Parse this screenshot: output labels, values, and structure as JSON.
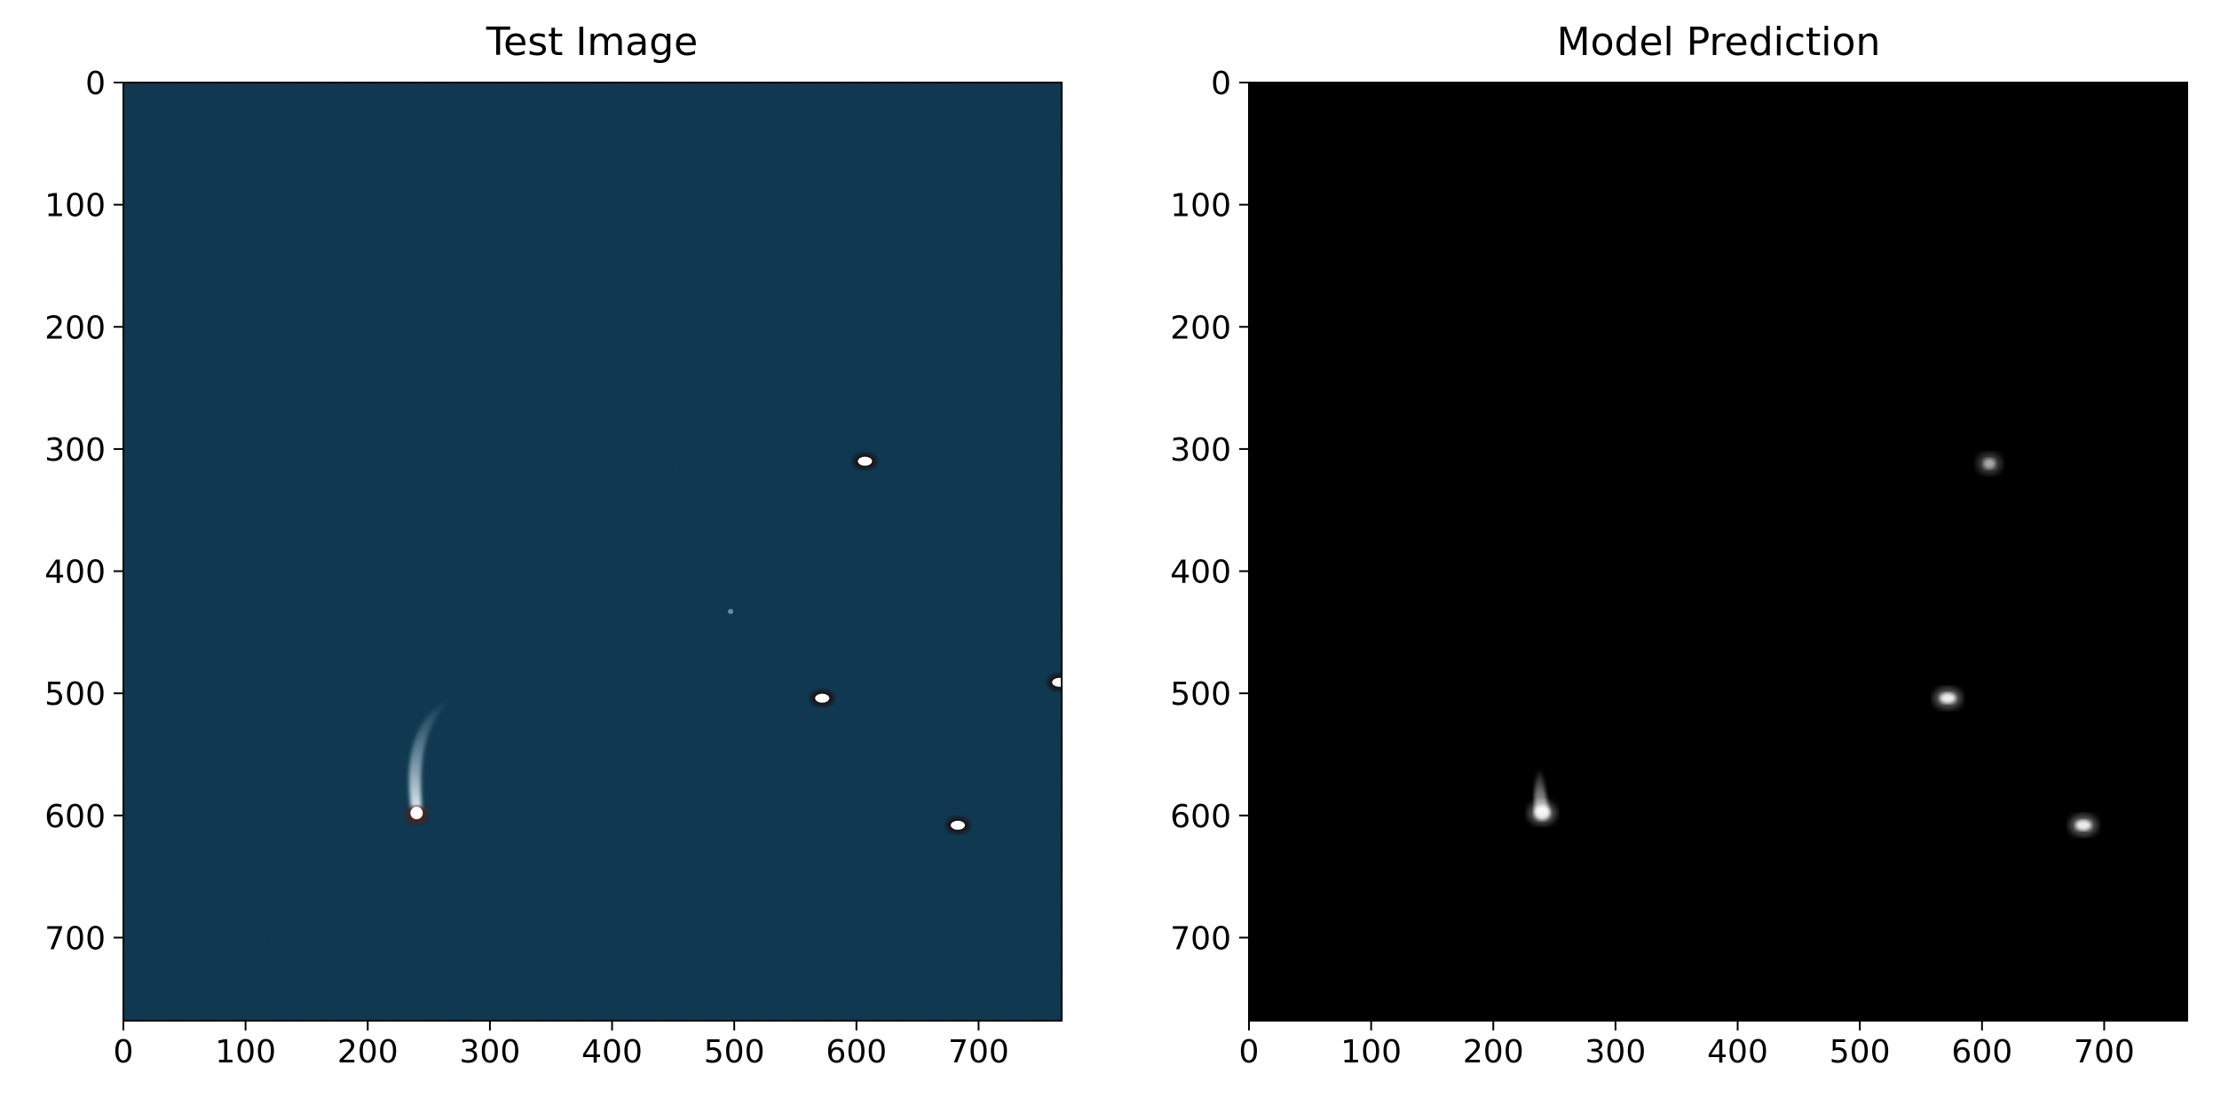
{
  "chart_data": [
    {
      "type": "image",
      "title": "Test Image",
      "xlim": [
        0,
        768
      ],
      "ylim": [
        768,
        0
      ],
      "xticks": [
        0,
        100,
        200,
        300,
        400,
        500,
        600,
        700
      ],
      "yticks": [
        0,
        100,
        200,
        300,
        400,
        500,
        600,
        700
      ],
      "background": "#123e58",
      "objects": [
        {
          "x": 240,
          "y": 598,
          "kind": "comet"
        },
        {
          "x": 607,
          "y": 310,
          "kind": "dot"
        },
        {
          "x": 572,
          "y": 504,
          "kind": "dot"
        },
        {
          "x": 683,
          "y": 608,
          "kind": "dot"
        },
        {
          "x": 766,
          "y": 491,
          "kind": "dot"
        },
        {
          "x": 497,
          "y": 433,
          "kind": "faint"
        }
      ]
    },
    {
      "type": "image",
      "title": "Model Prediction",
      "xlim": [
        0,
        768
      ],
      "ylim": [
        768,
        0
      ],
      "xticks": [
        0,
        100,
        200,
        300,
        400,
        500,
        600,
        700
      ],
      "yticks": [
        0,
        100,
        200,
        300,
        400,
        500,
        600,
        700
      ],
      "background": "#000000",
      "objects": [
        {
          "x": 240,
          "y": 598,
          "kind": "blob-tail"
        },
        {
          "x": 606,
          "y": 312,
          "kind": "blob-faint"
        },
        {
          "x": 572,
          "y": 504,
          "kind": "blob"
        },
        {
          "x": 683,
          "y": 608,
          "kind": "blob"
        }
      ]
    }
  ]
}
